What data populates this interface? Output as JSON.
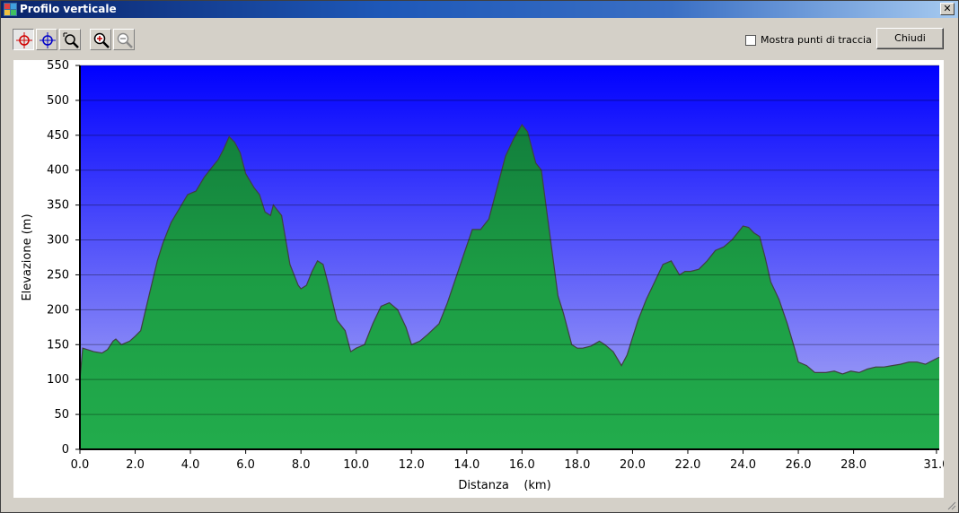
{
  "window": {
    "title": "Profilo verticale",
    "close_glyph": "✕"
  },
  "toolbar": {
    "buttons": [
      {
        "icon": "crosshair-red-icon",
        "pressed": true
      },
      {
        "icon": "crosshair-blue-icon",
        "pressed": false
      },
      {
        "icon": "zoom-window-icon",
        "pressed": false
      },
      {
        "icon": "zoom-in-icon",
        "pressed": false
      },
      {
        "icon": "zoom-out-icon",
        "pressed": false
      }
    ],
    "show_points_label": "Mostra punti di traccia",
    "show_points_checked": false,
    "close_label": "Chiudi"
  },
  "colors": {
    "sky_top": "#0000ff",
    "sky_bottom": "#b4b4f4",
    "fill_top": "#127e3c",
    "fill_bottom": "#22ac4c",
    "outline": "#404040"
  },
  "chart_data": {
    "type": "area",
    "title": "",
    "xlabel": "Distanza    (km)",
    "ylabel": "Elevazione (m)",
    "xlim": [
      0,
      31.1
    ],
    "ylim": [
      0,
      550
    ],
    "grid": true,
    "x_ticks": [
      "0.0",
      "2.0",
      "4.0",
      "6.0",
      "8.0",
      "10.0",
      "12.0",
      "14.0",
      "16.0",
      "18.0",
      "20.0",
      "22.0",
      "24.0",
      "26.0",
      "28.0",
      "31.0"
    ],
    "x_tick_values": [
      0,
      2,
      4,
      6,
      8,
      10,
      12,
      14,
      16,
      18,
      20,
      22,
      24,
      26,
      28,
      31
    ],
    "y_ticks": [
      "0",
      "50",
      "100",
      "150",
      "200",
      "250",
      "300",
      "350",
      "400",
      "450",
      "500",
      "550"
    ],
    "y_tick_values": [
      0,
      50,
      100,
      150,
      200,
      250,
      300,
      350,
      400,
      450,
      500,
      550
    ],
    "series": [
      {
        "x": [
          0,
          0.1,
          0.5,
          0.8,
          1.0,
          1.2,
          1.3,
          1.5,
          1.8,
          2.0,
          2.2,
          2.5,
          2.8,
          3.0,
          3.3,
          3.6,
          3.9,
          4.2,
          4.5,
          4.8,
          5.0,
          5.2,
          5.4,
          5.6,
          5.8,
          6.0,
          6.3,
          6.5,
          6.7,
          6.9,
          7.0,
          7.3,
          7.6,
          7.9,
          8.0,
          8.2,
          8.4,
          8.6,
          8.8,
          9.0,
          9.3,
          9.6,
          9.8,
          10.0,
          10.3,
          10.6,
          10.9,
          11.2,
          11.5,
          11.8,
          12.0,
          12.3,
          12.6,
          13.0,
          13.3,
          13.6,
          13.9,
          14.2,
          14.5,
          14.8,
          15.1,
          15.4,
          15.7,
          16.0,
          16.2,
          16.3,
          16.5,
          16.7,
          16.9,
          17.1,
          17.3,
          17.5,
          17.8,
          18.0,
          18.2,
          18.5,
          18.8,
          19.0,
          19.3,
          19.6,
          19.8,
          20.0,
          20.2,
          20.5,
          20.8,
          21.1,
          21.4,
          21.7,
          21.9,
          22.1,
          22.4,
          22.7,
          23.0,
          23.3,
          23.6,
          23.8,
          24.0,
          24.2,
          24.4,
          24.6,
          24.8,
          25.0,
          25.3,
          25.6,
          25.9,
          26.0,
          26.3,
          26.6,
          27.0,
          27.3,
          27.6,
          27.9,
          28.2,
          28.5,
          28.8,
          29.1,
          29.4,
          29.7,
          30.0,
          30.3,
          30.6,
          30.9,
          31.1
        ],
        "values": [
          100,
          145,
          140,
          138,
          143,
          155,
          158,
          150,
          155,
          162,
          170,
          220,
          270,
          295,
          325,
          345,
          365,
          370,
          390,
          405,
          415,
          430,
          448,
          440,
          425,
          395,
          375,
          365,
          340,
          335,
          350,
          335,
          265,
          235,
          230,
          235,
          255,
          270,
          265,
          235,
          185,
          170,
          140,
          145,
          150,
          180,
          205,
          210,
          200,
          175,
          150,
          155,
          165,
          180,
          210,
          245,
          280,
          315,
          315,
          330,
          375,
          420,
          445,
          465,
          455,
          440,
          410,
          400,
          340,
          280,
          220,
          195,
          150,
          145,
          145,
          148,
          155,
          150,
          140,
          120,
          135,
          160,
          185,
          215,
          240,
          265,
          270,
          250,
          255,
          255,
          258,
          270,
          285,
          290,
          300,
          310,
          320,
          318,
          310,
          305,
          275,
          240,
          215,
          180,
          140,
          125,
          120,
          110,
          110,
          112,
          108,
          112,
          110,
          115,
          118,
          118,
          120,
          122,
          125,
          125,
          122,
          128,
          132
        ]
      }
    ]
  }
}
